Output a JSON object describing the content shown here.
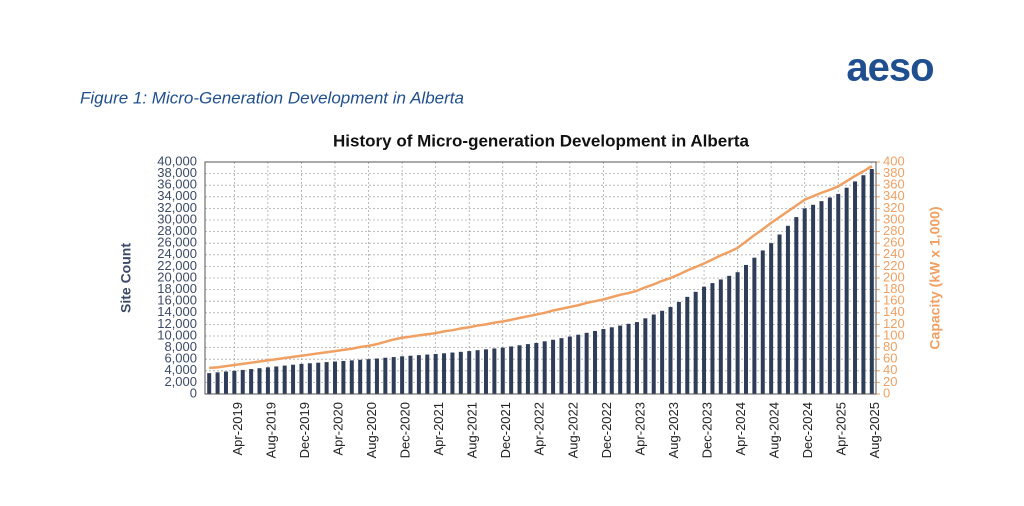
{
  "logo": "aeso",
  "caption": "Figure 1: Micro-Generation Development in Alberta",
  "chart_data": {
    "type": "combo",
    "title": "History of Micro-generation Development in Alberta",
    "ylabel": "Site Count",
    "y2label": "Capacity (kW x 1,000)",
    "categories": [
      null,
      null,
      null,
      "Apr-2019",
      null,
      null,
      null,
      "Aug-2019",
      null,
      null,
      null,
      "Dec-2019",
      null,
      null,
      null,
      "Apr-2020",
      null,
      null,
      null,
      "Aug-2020",
      null,
      null,
      null,
      "Dec-2020",
      null,
      null,
      null,
      "Apr-2021",
      null,
      null,
      null,
      "Aug-2021",
      null,
      null,
      null,
      "Dec-2021",
      null,
      null,
      null,
      "Apr-2022",
      null,
      null,
      null,
      "Aug-2022",
      null,
      null,
      null,
      "Dec-2022",
      null,
      null,
      null,
      "Apr-2023",
      null,
      null,
      null,
      "Aug-2023",
      null,
      null,
      null,
      "Dec-2023",
      null,
      null,
      null,
      "Apr-2024",
      null,
      null,
      null,
      "Aug-2024",
      null,
      null,
      null,
      "Dec-2024",
      null,
      null,
      null,
      "Apr-2025",
      null,
      null,
      null,
      "Aug-2025"
    ],
    "series": [
      {
        "type": "bar",
        "color": "#2f3d59",
        "values": [
          3600,
          3730,
          3870,
          4000,
          4150,
          4300,
          4450,
          4600,
          4750,
          4900,
          5050,
          5200,
          5300,
          5400,
          5500,
          5600,
          5700,
          5800,
          5900,
          6000,
          6120,
          6250,
          6370,
          6500,
          6600,
          6700,
          6800,
          6900,
          7020,
          7150,
          7270,
          7400,
          7550,
          7700,
          7850,
          8000,
          8200,
          8400,
          8600,
          8800,
          9080,
          9350,
          9630,
          9900,
          10220,
          10550,
          10870,
          11200,
          11500,
          11800,
          12100,
          12400,
          13050,
          13700,
          14350,
          15000,
          15870,
          16750,
          17620,
          18500,
          19120,
          19750,
          20370,
          21000,
          22250,
          23500,
          24750,
          26000,
          27500,
          29000,
          30500,
          32000,
          32620,
          33250,
          33870,
          34500,
          35570,
          36650,
          37720,
          38800
        ]
      },
      {
        "type": "line",
        "axis": "y2",
        "color": "#f0a063",
        "values": [
          45,
          46,
          48,
          50,
          52,
          54,
          56,
          58,
          60,
          62,
          64,
          66,
          68,
          70,
          72,
          74,
          76,
          78,
          81,
          83,
          86,
          90,
          94,
          97,
          99,
          101,
          103,
          105,
          108,
          110,
          113,
          115,
          118,
          120,
          123,
          125,
          128,
          131,
          134,
          137,
          140,
          144,
          147,
          150,
          153,
          157,
          160,
          163,
          167,
          171,
          174,
          178,
          184,
          189,
          195,
          200,
          206,
          213,
          219,
          225,
          232,
          239,
          245,
          252,
          263,
          274,
          284,
          295,
          305,
          315,
          325,
          335,
          341,
          347,
          352,
          358,
          367,
          376,
          384,
          393
        ]
      }
    ],
    "ylim": [
      0,
      40000
    ],
    "yticks": [
      0,
      {
        "value": 2000,
        "label": "2,000"
      },
      {
        "value": 4000,
        "label": "4,000"
      },
      {
        "value": 6000,
        "label": "6,000"
      },
      {
        "value": 8000,
        "label": "8,000"
      },
      {
        "value": 10000,
        "label": "10,000"
      },
      {
        "value": 12000,
        "label": "12,000"
      },
      {
        "value": 14000,
        "label": "14,000"
      },
      {
        "value": 16000,
        "label": "16,000"
      },
      {
        "value": 18000,
        "label": "18,000"
      },
      {
        "value": 20000,
        "label": "20,000"
      },
      {
        "value": 22000,
        "label": "22,000"
      },
      {
        "value": 24000,
        "label": "24,000"
      },
      {
        "value": 26000,
        "label": "26,000"
      },
      {
        "value": 28000,
        "label": "28,000"
      },
      {
        "value": 30000,
        "label": "30,000"
      },
      {
        "value": 32000,
        "label": "32,000"
      },
      {
        "value": 34000,
        "label": "34,000"
      },
      {
        "value": 36000,
        "label": "36,000"
      },
      {
        "value": 38000,
        "label": "38,000"
      },
      {
        "value": 40000,
        "label": "40,000"
      }
    ],
    "y2lim": [
      0,
      400
    ],
    "y2ticks": [
      0,
      20,
      40,
      60,
      80,
      100,
      120,
      140,
      160,
      180,
      200,
      220,
      240,
      260,
      280,
      300,
      320,
      340,
      360,
      380,
      400
    ],
    "grid": true
  }
}
